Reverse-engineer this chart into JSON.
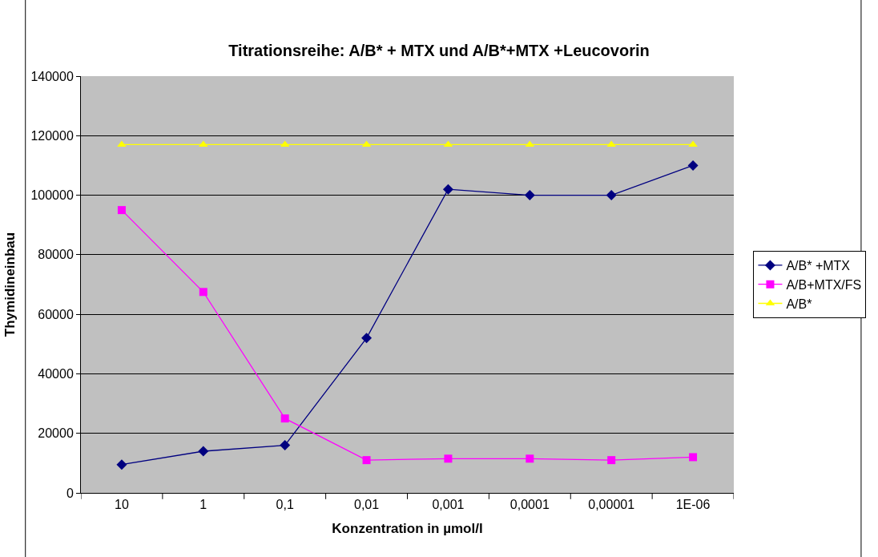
{
  "chart_data": {
    "type": "line",
    "title": "Titrationsreihe: A/B* + MTX und A/B*+MTX +Leucovorin",
    "xlabel": "Konzentration in µmol/l",
    "ylabel": "Thymidineinbau",
    "categories": [
      "10",
      "1",
      "0,1",
      "0,01",
      "0,001",
      "0,0001",
      "0,00001",
      "1E-06"
    ],
    "series": [
      {
        "name": "A/B* +MTX",
        "color": "#000080",
        "marker": "diamond",
        "values": [
          9500,
          14000,
          16000,
          52000,
          102000,
          100000,
          100000,
          110000
        ]
      },
      {
        "name": "A/B+MTX/FS",
        "color": "#ff00ff",
        "marker": "square",
        "values": [
          95000,
          67500,
          25000,
          11000,
          11500,
          11500,
          11000,
          12000
        ]
      },
      {
        "name": "A/B*",
        "color": "#ffff00",
        "marker": "triangle",
        "values": [
          117000,
          117000,
          117000,
          117000,
          117000,
          117000,
          117000,
          117000
        ]
      }
    ],
    "ylim": [
      0,
      140000
    ],
    "yticks": [
      0,
      20000,
      40000,
      60000,
      80000,
      100000,
      120000,
      140000
    ],
    "grid": "y",
    "legend": "right",
    "line_style": "solid"
  }
}
